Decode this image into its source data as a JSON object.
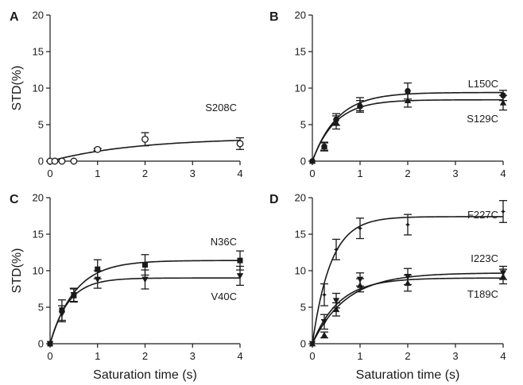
{
  "chart_data": [
    {
      "type": "scatter",
      "panel": "A",
      "xlim": [
        0,
        4
      ],
      "ylim": [
        0,
        20
      ],
      "xticks": [
        0,
        1,
        2,
        3,
        4
      ],
      "yticks": [
        0,
        5,
        10,
        15,
        20
      ],
      "ylabel": "STD(%)",
      "xlabel": "",
      "series": [
        {
          "name": "S208C",
          "marker": "circle-open",
          "fit": {
            "plateau": 3.2,
            "k": 0.55
          },
          "points": [
            {
              "x": 0.0,
              "y": 0.0,
              "err": 0
            },
            {
              "x": 0.1,
              "y": 0.0,
              "err": 0
            },
            {
              "x": 0.25,
              "y": 0.0,
              "err": 0
            },
            {
              "x": 0.5,
              "y": 0.0,
              "err": 0
            },
            {
              "x": 1.0,
              "y": 1.6,
              "err": 0.15
            },
            {
              "x": 2.0,
              "y": 3.0,
              "err": 0.9
            },
            {
              "x": 4.0,
              "y": 2.4,
              "err": 0.8
            }
          ]
        }
      ]
    },
    {
      "type": "scatter",
      "panel": "B",
      "xlim": [
        0,
        4
      ],
      "ylim": [
        0,
        20
      ],
      "xticks": [
        0,
        1,
        2,
        3,
        4
      ],
      "yticks": [
        0,
        5,
        10,
        15,
        20
      ],
      "ylabel": "",
      "xlabel": "",
      "series": [
        {
          "name": "L150C",
          "marker": "circle",
          "fit": {
            "plateau": 9.4,
            "k": 1.9
          },
          "points": [
            {
              "x": 0.0,
              "y": 0.0,
              "err": 0
            },
            {
              "x": 0.25,
              "y": 2.0,
              "err": 0.6
            },
            {
              "x": 0.5,
              "y": 5.7,
              "err": 0.8
            },
            {
              "x": 1.0,
              "y": 7.5,
              "err": 0.8
            },
            {
              "x": 2.0,
              "y": 9.6,
              "err": 1.1
            },
            {
              "x": 4.0,
              "y": 9.0,
              "err": 0.7
            }
          ]
        },
        {
          "name": "S129C",
          "marker": "triangle",
          "fit": {
            "plateau": 8.4,
            "k": 2.1
          },
          "points": [
            {
              "x": 0.0,
              "y": 0.0,
              "err": 0
            },
            {
              "x": 0.25,
              "y": 2.0,
              "err": 0.5
            },
            {
              "x": 0.5,
              "y": 5.3,
              "err": 0.9
            },
            {
              "x": 1.0,
              "y": 7.8,
              "err": 0.9
            },
            {
              "x": 2.0,
              "y": 8.3,
              "err": 0.9
            },
            {
              "x": 4.0,
              "y": 8.0,
              "err": 1.0
            }
          ]
        }
      ]
    },
    {
      "type": "scatter",
      "panel": "C",
      "xlim": [
        0,
        4
      ],
      "ylim": [
        0,
        20
      ],
      "xticks": [
        0,
        1,
        2,
        3,
        4
      ],
      "yticks": [
        0,
        5,
        10,
        15,
        20
      ],
      "ylabel": "STD(%)",
      "xlabel": "Saturation time (s)",
      "series": [
        {
          "name": "N36C",
          "marker": "square",
          "fit": {
            "plateau": 11.4,
            "k": 1.9
          },
          "points": [
            {
              "x": 0.0,
              "y": 0.0,
              "err": 0
            },
            {
              "x": 0.25,
              "y": 4.6,
              "err": 1.4
            },
            {
              "x": 0.5,
              "y": 6.6,
              "err": 0.9
            },
            {
              "x": 1.0,
              "y": 10.2,
              "err": 1.3
            },
            {
              "x": 2.0,
              "y": 10.8,
              "err": 1.4
            },
            {
              "x": 4.0,
              "y": 11.4,
              "err": 1.3
            }
          ]
        },
        {
          "name": "V40C",
          "marker": "triangle-down",
          "fit": {
            "plateau": 9.0,
            "k": 2.6
          },
          "points": [
            {
              "x": 0.0,
              "y": 0.0,
              "err": 0
            },
            {
              "x": 0.25,
              "y": 4.1,
              "err": 1.1
            },
            {
              "x": 0.5,
              "y": 6.7,
              "err": 0.9
            },
            {
              "x": 1.0,
              "y": 8.8,
              "err": 1.2
            },
            {
              "x": 2.0,
              "y": 8.8,
              "err": 1.3
            },
            {
              "x": 4.0,
              "y": 9.3,
              "err": 1.3
            }
          ]
        }
      ]
    },
    {
      "type": "scatter",
      "panel": "D",
      "xlim": [
        0,
        4
      ],
      "ylim": [
        0,
        20
      ],
      "xticks": [
        0,
        1,
        2,
        3,
        4
      ],
      "yticks": [
        0,
        5,
        10,
        15,
        20
      ],
      "ylabel": "",
      "xlabel": "Saturation time (s)",
      "series": [
        {
          "name": "F227C",
          "marker": "star",
          "fit": {
            "plateau": 17.4,
            "k": 2.6
          },
          "points": [
            {
              "x": 0.0,
              "y": 0.0,
              "err": 0
            },
            {
              "x": 0.25,
              "y": 6.7,
              "err": 1.5
            },
            {
              "x": 0.5,
              "y": 12.9,
              "err": 1.4
            },
            {
              "x": 1.0,
              "y": 15.8,
              "err": 1.4
            },
            {
              "x": 2.0,
              "y": 16.3,
              "err": 1.4
            },
            {
              "x": 4.0,
              "y": 18.1,
              "err": 1.5
            }
          ]
        },
        {
          "name": "I223C",
          "marker": "triangle-down",
          "fit": {
            "plateau": 9.7,
            "k": 1.4
          },
          "points": [
            {
              "x": 0.0,
              "y": 0.0,
              "err": 0
            },
            {
              "x": 0.25,
              "y": 3.0,
              "err": 1.0
            },
            {
              "x": 0.5,
              "y": 5.9,
              "err": 1.0
            },
            {
              "x": 1.0,
              "y": 8.8,
              "err": 0.9
            },
            {
              "x": 2.0,
              "y": 9.2,
              "err": 1.1
            },
            {
              "x": 4.0,
              "y": 9.7,
              "err": 0.9
            }
          ]
        },
        {
          "name": "T189C",
          "marker": "triangle",
          "fit": {
            "plateau": 9.0,
            "k": 1.8
          },
          "points": [
            {
              "x": 0.0,
              "y": 0.0,
              "err": 0
            },
            {
              "x": 0.25,
              "y": 1.2,
              "err": 0.4
            },
            {
              "x": 0.5,
              "y": 4.7,
              "err": 0.9
            },
            {
              "x": 1.0,
              "y": 8.0,
              "err": 0.9
            },
            {
              "x": 2.0,
              "y": 8.3,
              "err": 1.1
            },
            {
              "x": 4.0,
              "y": 9.2,
              "err": 1.0
            }
          ]
        }
      ]
    }
  ]
}
